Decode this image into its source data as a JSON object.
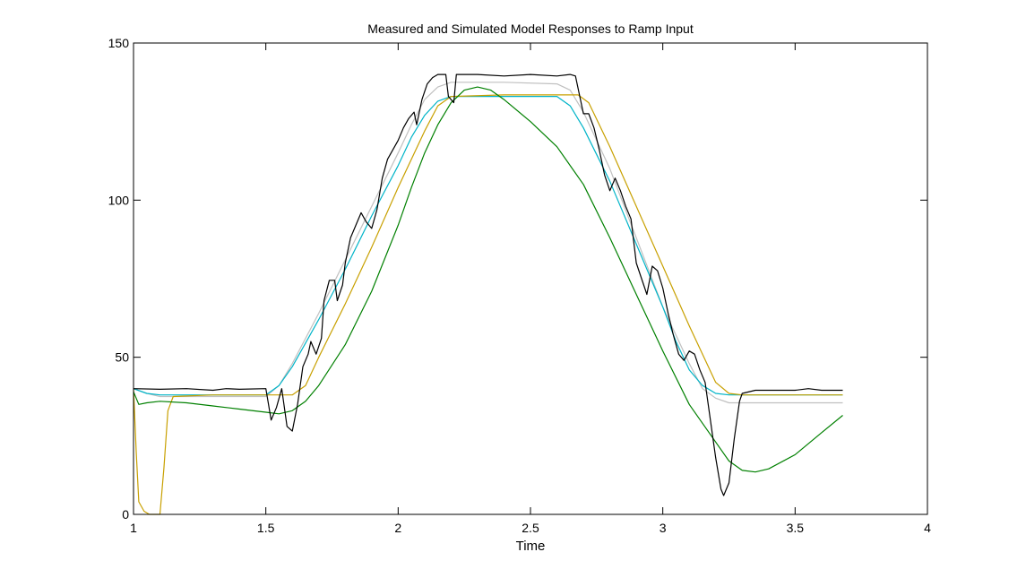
{
  "chart_data": {
    "type": "line",
    "title": "Measured and Simulated Model Responses to Ramp Input",
    "xlabel": "Time",
    "ylabel": "",
    "xlim": [
      1,
      4
    ],
    "ylim": [
      0,
      150
    ],
    "xticks": [
      1,
      1.5,
      2,
      2.5,
      3,
      3.5,
      4
    ],
    "xtick_labels": [
      "1",
      "1.5",
      "2",
      "2.5",
      "3",
      "3.5",
      "4"
    ],
    "yticks": [
      0,
      50,
      100,
      150
    ],
    "ytick_labels": [
      "0",
      "50",
      "100",
      "150"
    ],
    "grid": false,
    "legend": "none",
    "series": [
      {
        "color": "#c0c0c0",
        "points": [
          [
            1.0,
            40
          ],
          [
            1.05,
            38.5
          ],
          [
            1.1,
            37.5
          ],
          [
            1.3,
            37.5
          ],
          [
            1.5,
            37.5
          ],
          [
            1.55,
            41
          ],
          [
            1.6,
            48
          ],
          [
            1.7,
            64
          ],
          [
            1.8,
            81
          ],
          [
            1.9,
            98
          ],
          [
            2.0,
            115
          ],
          [
            2.05,
            124
          ],
          [
            2.1,
            132
          ],
          [
            2.15,
            136
          ],
          [
            2.2,
            137.5
          ],
          [
            2.4,
            137.5
          ],
          [
            2.6,
            137
          ],
          [
            2.65,
            135
          ],
          [
            2.7,
            128
          ],
          [
            2.8,
            110
          ],
          [
            2.9,
            88
          ],
          [
            3.0,
            66
          ],
          [
            3.1,
            48
          ],
          [
            3.15,
            40
          ],
          [
            3.2,
            37
          ],
          [
            3.25,
            35.5
          ],
          [
            3.4,
            35.5
          ],
          [
            3.68,
            35.5
          ]
        ]
      },
      {
        "color": "#00b4c8",
        "points": [
          [
            1.0,
            40
          ],
          [
            1.05,
            38.5
          ],
          [
            1.1,
            38
          ],
          [
            1.3,
            38
          ],
          [
            1.5,
            38
          ],
          [
            1.55,
            41
          ],
          [
            1.6,
            47
          ],
          [
            1.7,
            62
          ],
          [
            1.8,
            78
          ],
          [
            1.9,
            95
          ],
          [
            2.0,
            111
          ],
          [
            2.05,
            120
          ],
          [
            2.1,
            127
          ],
          [
            2.15,
            131.5
          ],
          [
            2.2,
            133
          ],
          [
            2.4,
            133
          ],
          [
            2.6,
            133
          ],
          [
            2.65,
            130
          ],
          [
            2.7,
            123
          ],
          [
            2.8,
            106
          ],
          [
            2.9,
            86
          ],
          [
            3.0,
            66
          ],
          [
            3.05,
            55
          ],
          [
            3.1,
            46
          ],
          [
            3.15,
            41
          ],
          [
            3.2,
            38.5
          ],
          [
            3.25,
            38
          ],
          [
            3.4,
            38
          ],
          [
            3.68,
            38
          ]
        ]
      },
      {
        "color": "#c8a000",
        "points": [
          [
            1.0,
            40
          ],
          [
            1.01,
            20
          ],
          [
            1.02,
            4
          ],
          [
            1.04,
            1
          ],
          [
            1.06,
            0
          ],
          [
            1.1,
            0
          ],
          [
            1.115,
            15
          ],
          [
            1.13,
            33
          ],
          [
            1.15,
            37.5
          ],
          [
            1.3,
            38
          ],
          [
            1.6,
            38
          ],
          [
            1.65,
            41
          ],
          [
            1.7,
            50
          ],
          [
            1.8,
            67
          ],
          [
            1.9,
            85
          ],
          [
            2.0,
            104
          ],
          [
            2.1,
            122
          ],
          [
            2.15,
            130
          ],
          [
            2.2,
            133
          ],
          [
            2.4,
            133.5
          ],
          [
            2.68,
            133.5
          ],
          [
            2.72,
            131
          ],
          [
            2.8,
            117
          ],
          [
            2.9,
            98
          ],
          [
            3.0,
            79
          ],
          [
            3.1,
            60
          ],
          [
            3.2,
            42
          ],
          [
            3.25,
            38.5
          ],
          [
            3.3,
            38
          ],
          [
            3.68,
            38
          ]
        ]
      },
      {
        "color": "#008000",
        "points": [
          [
            1.0,
            39
          ],
          [
            1.02,
            35
          ],
          [
            1.05,
            35.5
          ],
          [
            1.1,
            36
          ],
          [
            1.2,
            35.5
          ],
          [
            1.3,
            34.5
          ],
          [
            1.4,
            33.5
          ],
          [
            1.5,
            32.5
          ],
          [
            1.55,
            32
          ],
          [
            1.6,
            33
          ],
          [
            1.65,
            36
          ],
          [
            1.7,
            41
          ],
          [
            1.8,
            54
          ],
          [
            1.9,
            71
          ],
          [
            2.0,
            92
          ],
          [
            2.05,
            104
          ],
          [
            2.1,
            115
          ],
          [
            2.15,
            124
          ],
          [
            2.2,
            131
          ],
          [
            2.25,
            135
          ],
          [
            2.3,
            136
          ],
          [
            2.35,
            135
          ],
          [
            2.4,
            132
          ],
          [
            2.5,
            125
          ],
          [
            2.6,
            117
          ],
          [
            2.7,
            105
          ],
          [
            2.8,
            88
          ],
          [
            2.9,
            70
          ],
          [
            3.0,
            52
          ],
          [
            3.1,
            35
          ],
          [
            3.2,
            23
          ],
          [
            3.25,
            17
          ],
          [
            3.3,
            14
          ],
          [
            3.35,
            13.5
          ],
          [
            3.4,
            14.5
          ],
          [
            3.5,
            19
          ],
          [
            3.6,
            26
          ],
          [
            3.68,
            31.5
          ]
        ]
      },
      {
        "color": "#000000",
        "points": [
          [
            1.0,
            40
          ],
          [
            1.1,
            39.8
          ],
          [
            1.2,
            40
          ],
          [
            1.3,
            39.5
          ],
          [
            1.35,
            40
          ],
          [
            1.4,
            39.8
          ],
          [
            1.5,
            40
          ],
          [
            1.52,
            30
          ],
          [
            1.54,
            34
          ],
          [
            1.56,
            40
          ],
          [
            1.58,
            28
          ],
          [
            1.6,
            26.5
          ],
          [
            1.62,
            35
          ],
          [
            1.64,
            47
          ],
          [
            1.66,
            51
          ],
          [
            1.67,
            55
          ],
          [
            1.69,
            51
          ],
          [
            1.71,
            56
          ],
          [
            1.72,
            68
          ],
          [
            1.74,
            74.5
          ],
          [
            1.76,
            74.5
          ],
          [
            1.77,
            68
          ],
          [
            1.79,
            73
          ],
          [
            1.8,
            80
          ],
          [
            1.82,
            88
          ],
          [
            1.84,
            92
          ],
          [
            1.86,
            96
          ],
          [
            1.88,
            93
          ],
          [
            1.9,
            91
          ],
          [
            1.92,
            97
          ],
          [
            1.94,
            107
          ],
          [
            1.96,
            113
          ],
          [
            1.98,
            116
          ],
          [
            2.0,
            119
          ],
          [
            2.02,
            123
          ],
          [
            2.04,
            126
          ],
          [
            2.06,
            128
          ],
          [
            2.07,
            124
          ],
          [
            2.09,
            132
          ],
          [
            2.11,
            137
          ],
          [
            2.13,
            139
          ],
          [
            2.15,
            140
          ],
          [
            2.18,
            140
          ],
          [
            2.19,
            133
          ],
          [
            2.21,
            131
          ],
          [
            2.22,
            140
          ],
          [
            2.3,
            140
          ],
          [
            2.4,
            139.5
          ],
          [
            2.5,
            140
          ],
          [
            2.6,
            139.5
          ],
          [
            2.65,
            140
          ],
          [
            2.67,
            139.5
          ],
          [
            2.7,
            127.5
          ],
          [
            2.72,
            127.5
          ],
          [
            2.74,
            123
          ],
          [
            2.76,
            116
          ],
          [
            2.78,
            108
          ],
          [
            2.8,
            103
          ],
          [
            2.82,
            107
          ],
          [
            2.84,
            103
          ],
          [
            2.86,
            98
          ],
          [
            2.88,
            94
          ],
          [
            2.9,
            80
          ],
          [
            2.92,
            75
          ],
          [
            2.94,
            70
          ],
          [
            2.96,
            79
          ],
          [
            2.98,
            77.5
          ],
          [
            3.0,
            72
          ],
          [
            3.02,
            64
          ],
          [
            3.04,
            57
          ],
          [
            3.06,
            51
          ],
          [
            3.08,
            49
          ],
          [
            3.1,
            52
          ],
          [
            3.12,
            51
          ],
          [
            3.14,
            46
          ],
          [
            3.16,
            42
          ],
          [
            3.18,
            30
          ],
          [
            3.2,
            18
          ],
          [
            3.22,
            8
          ],
          [
            3.23,
            6
          ],
          [
            3.25,
            10
          ],
          [
            3.27,
            24
          ],
          [
            3.29,
            36
          ],
          [
            3.3,
            38.5
          ],
          [
            3.35,
            39.5
          ],
          [
            3.4,
            39.5
          ],
          [
            3.5,
            39.5
          ],
          [
            3.55,
            40
          ],
          [
            3.6,
            39.5
          ],
          [
            3.68,
            39.5
          ]
        ]
      }
    ]
  }
}
